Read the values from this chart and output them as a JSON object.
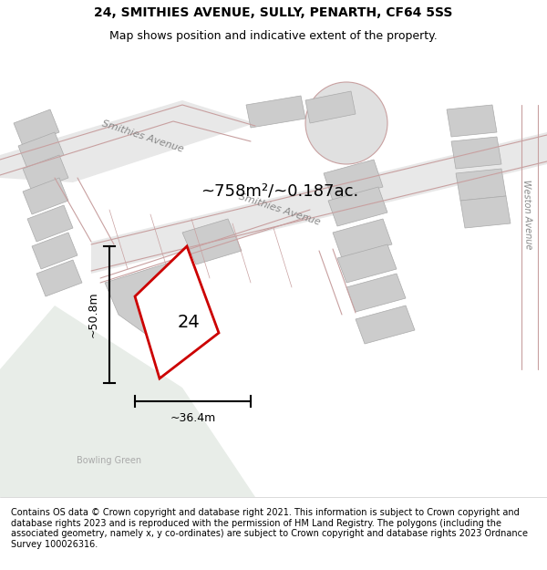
{
  "title_line1": "24, SMITHIES AVENUE, SULLY, PENARTH, CF64 5SS",
  "title_line2": "Map shows position and indicative extent of the property.",
  "footer_text": "Contains OS data © Crown copyright and database right 2021. This information is subject to Crown copyright and database rights 2023 and is reproduced with the permission of HM Land Registry. The polygons (including the associated geometry, namely x, y co-ordinates) are subject to Crown copyright and database rights 2023 Ordnance Survey 100026316.",
  "area_label": "~758m²/~0.187ac.",
  "number_label": "24",
  "dim_height": "~50.8m",
  "dim_width": "~36.4m",
  "street_label1": "Smithies Avenue",
  "street_label2": "Smithies Avenue",
  "street_label3": "Weston Avenue",
  "bowling_green": "Bowling Green",
  "map_bg": "#f2f2f2",
  "road_fill": "#e8e8e8",
  "building_fill": "#d8d8d8",
  "green_fill": "#e8ede8",
  "plot_outline_color": "#cc0000",
  "plot_fill": "#ffffff",
  "road_line_color": "#c8a0a0",
  "title_fontsize": 10,
  "subtitle_fontsize": 9,
  "footer_fontsize": 7
}
